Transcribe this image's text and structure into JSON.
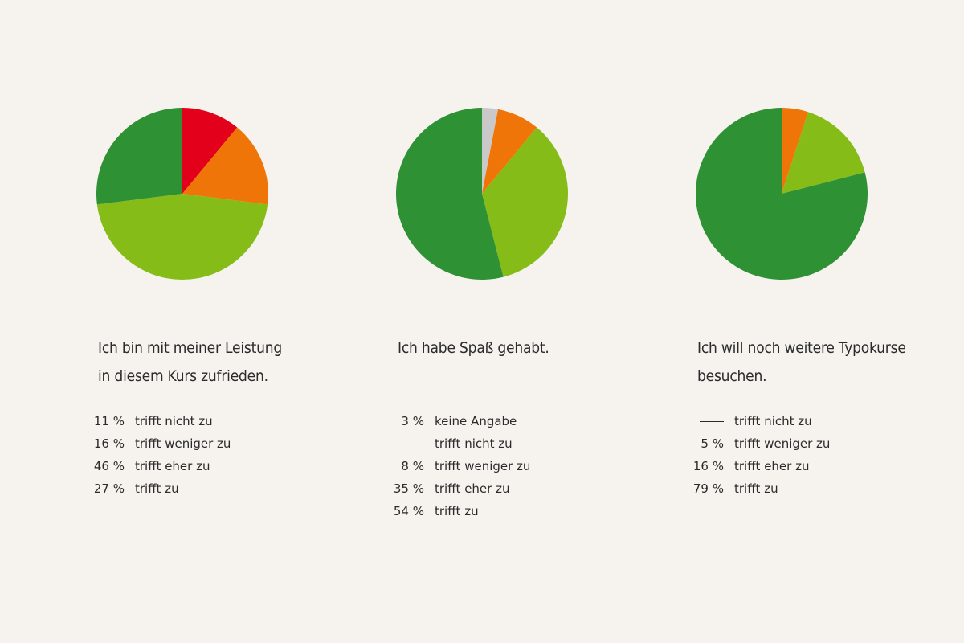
{
  "colors": {
    "background": "#f6f3ee",
    "keine_angabe": "#c9c9c9",
    "trifft_nicht_zu": "#e2001a",
    "trifft_weniger_zu": "#ef7508",
    "trifft_eher_zu": "#86bc17",
    "trifft_zu": "#2e9133",
    "text": "#2b2b2b"
  },
  "chart_data": [
    {
      "type": "pie",
      "title": "Ich bin mit meiner Leistung in diesem Kurs zufrieden.",
      "title_lines": [
        "Ich bin mit meiner Leistung",
        "in diesem Kurs zufrieden."
      ],
      "slices": [
        {
          "label": "trifft nicht zu",
          "value": 11,
          "value_text": "11 %",
          "color": "#e2001a"
        },
        {
          "label": "trifft weniger zu",
          "value": 16,
          "value_text": "16 %",
          "color": "#ef7508"
        },
        {
          "label": "trifft eher zu",
          "value": 46,
          "value_text": "46 %",
          "color": "#86bc17"
        },
        {
          "label": "trifft zu",
          "value": 27,
          "value_text": "27 %",
          "color": "#2e9133"
        }
      ]
    },
    {
      "type": "pie",
      "title": "Ich habe Spaß gehabt.",
      "title_lines": [
        "Ich habe Spaß gehabt."
      ],
      "slices": [
        {
          "label": "keine Angabe",
          "value": 3,
          "value_text": "3 %",
          "color": "#c9c9c9"
        },
        {
          "label": "trifft nicht zu",
          "value": 0,
          "value_text": "",
          "color": "#e2001a"
        },
        {
          "label": "trifft weniger zu",
          "value": 8,
          "value_text": "8 %",
          "color": "#ef7508"
        },
        {
          "label": "trifft eher zu",
          "value": 35,
          "value_text": "35 %",
          "color": "#86bc17"
        },
        {
          "label": "trifft zu",
          "value": 54,
          "value_text": "54 %",
          "color": "#2e9133"
        }
      ]
    },
    {
      "type": "pie",
      "title": "Ich will noch weitere Typokurse besuchen.",
      "title_lines": [
        "Ich will noch weitere Typokurse",
        "besuchen."
      ],
      "slices": [
        {
          "label": "trifft nicht zu",
          "value": 0,
          "value_text": "",
          "color": "#e2001a"
        },
        {
          "label": "trifft weniger zu",
          "value": 5,
          "value_text": "5 %",
          "color": "#ef7508"
        },
        {
          "label": "trifft eher zu",
          "value": 16,
          "value_text": "16 %",
          "color": "#86bc17"
        },
        {
          "label": "trifft zu",
          "value": 79,
          "value_text": "79 %",
          "color": "#2e9133"
        }
      ]
    }
  ]
}
